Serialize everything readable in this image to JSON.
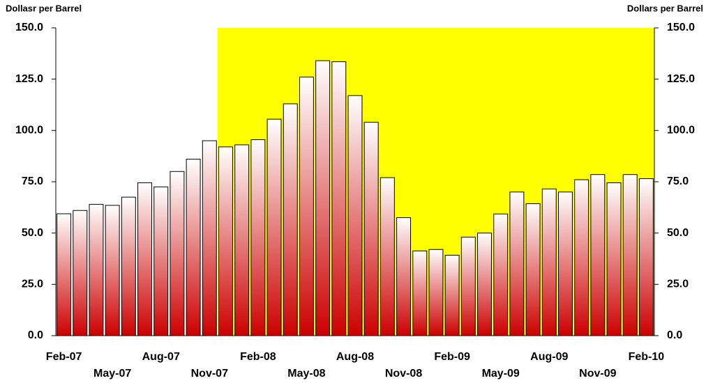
{
  "chart_data": {
    "type": "bar",
    "y_label": "Dollasr per Barrel",
    "y2_label": "Dollars per Barrel",
    "categories": [
      "Feb-07",
      null,
      null,
      "May-07",
      null,
      null,
      "Aug-07",
      null,
      null,
      "Nov-07",
      null,
      null,
      "Feb-08",
      null,
      null,
      "May-08",
      null,
      null,
      "Aug-08",
      null,
      null,
      "Nov-08",
      null,
      null,
      "Feb-09",
      null,
      null,
      "May-09",
      null,
      null,
      "Aug-09",
      null,
      null,
      "Nov-09",
      null,
      null,
      "Feb-10"
    ],
    "values": [
      59.4,
      61,
      64,
      63.5,
      67.5,
      74.5,
      72.5,
      80,
      86,
      95,
      92,
      93,
      95.5,
      105.5,
      113,
      126,
      134,
      133.5,
      117,
      104,
      77,
      57.5,
      41.3,
      42,
      39.2,
      48,
      50,
      59.3,
      70,
      64.3,
      71.5,
      70,
      76,
      78.5,
      74.5,
      78.5,
      76.5
    ],
    "color": "#cc0000",
    "highlight": {
      "color": "#ffff00",
      "from_index": 10
    },
    "ylim": [
      0,
      150
    ],
    "yticks": [
      {
        "value": 0,
        "label": "0.0"
      },
      {
        "value": 25,
        "label": "25.0"
      },
      {
        "value": 50,
        "label": "50.0"
      },
      {
        "value": 75,
        "label": "75.0"
      },
      {
        "value": 100,
        "label": "100.0"
      },
      {
        "value": 125,
        "label": "125.0"
      },
      {
        "value": 150,
        "label": "150.0"
      }
    ],
    "y2lim": [
      0,
      150
    ],
    "y2ticks": [
      {
        "value": 0,
        "label": "0.0"
      },
      {
        "value": 25,
        "label": "25.0"
      },
      {
        "value": 50,
        "label": "50.0"
      },
      {
        "value": 75,
        "label": "75.0"
      },
      {
        "value": 100,
        "label": "100.0"
      },
      {
        "value": 125,
        "label": "125.0"
      },
      {
        "value": 150,
        "label": "150.0"
      }
    ]
  }
}
